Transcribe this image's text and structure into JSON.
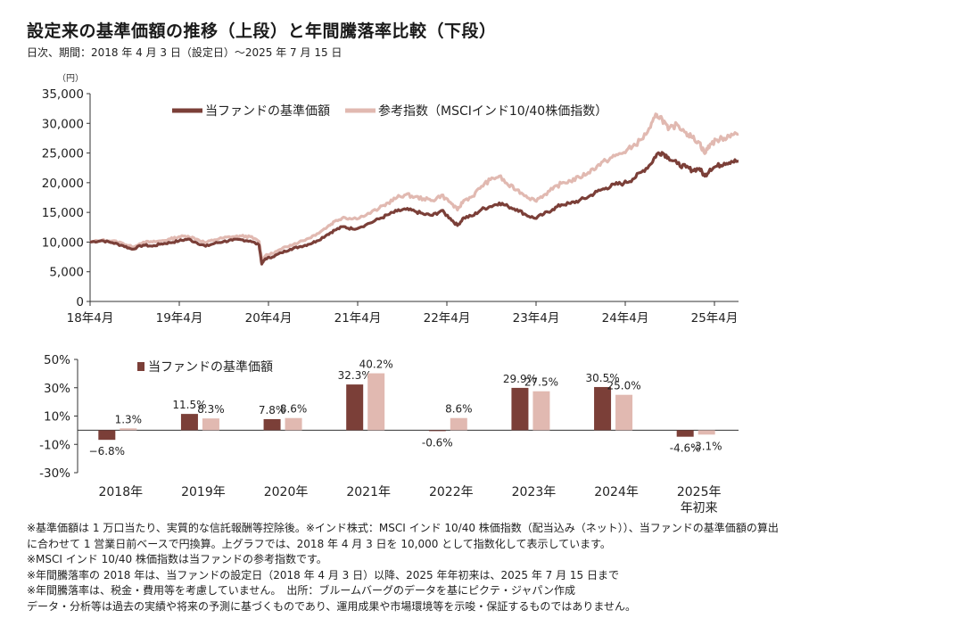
{
  "title": "設定来の基準価額の推移（上段）と年間騰落率比較（下段）",
  "subtitle": "日次、期間：2018 年 4 月 3 日（設定日）～2025 年 7 月 15 日",
  "colors": {
    "fund": "#7b3f38",
    "index": "#e1b9b1",
    "axis": "#333333"
  },
  "chart_data": [
    {
      "type": "line",
      "unit_label": "（円）",
      "ylim": [
        0,
        35000
      ],
      "y_ticks": [
        "35,000",
        "30,000",
        "25,000",
        "20,000",
        "15,000",
        "10,000",
        "5,000",
        "0"
      ],
      "x_ticks": [
        "18年4月",
        "19年4月",
        "20年4月",
        "21年4月",
        "22年4月",
        "23年4月",
        "24年4月",
        "25年4月"
      ],
      "xlim": [
        2018.25,
        2025.54
      ],
      "legend_position": "top",
      "series": [
        {
          "name": "当ファンドの基準価額",
          "points": [
            [
              2018.25,
              10000
            ],
            [
              2018.38,
              10250
            ],
            [
              2018.5,
              9900
            ],
            [
              2018.62,
              9400
            ],
            [
              2018.72,
              8800
            ],
            [
              2018.85,
              9500
            ],
            [
              2018.95,
              9300
            ],
            [
              2019.05,
              9700
            ],
            [
              2019.15,
              9900
            ],
            [
              2019.25,
              10200
            ],
            [
              2019.35,
              10500
            ],
            [
              2019.45,
              9900
            ],
            [
              2019.55,
              9300
            ],
            [
              2019.65,
              9800
            ],
            [
              2019.75,
              10100
            ],
            [
              2019.85,
              10300
            ],
            [
              2019.95,
              10400
            ],
            [
              2020.05,
              10200
            ],
            [
              2020.15,
              9500
            ],
            [
              2020.18,
              6300
            ],
            [
              2020.22,
              7200
            ],
            [
              2020.3,
              7500
            ],
            [
              2020.4,
              8200
            ],
            [
              2020.5,
              8800
            ],
            [
              2020.6,
              9200
            ],
            [
              2020.7,
              9600
            ],
            [
              2020.8,
              10200
            ],
            [
              2020.92,
              11300
            ],
            [
              2021.0,
              12000
            ],
            [
              2021.1,
              12600
            ],
            [
              2021.2,
              12200
            ],
            [
              2021.35,
              12900
            ],
            [
              2021.5,
              13900
            ],
            [
              2021.6,
              14600
            ],
            [
              2021.7,
              15200
            ],
            [
              2021.8,
              15500
            ],
            [
              2021.9,
              15200
            ],
            [
              2022.0,
              14700
            ],
            [
              2022.1,
              14500
            ],
            [
              2022.2,
              15300
            ],
            [
              2022.3,
              14000
            ],
            [
              2022.38,
              12800
            ],
            [
              2022.45,
              14100
            ],
            [
              2022.55,
              14400
            ],
            [
              2022.65,
              15500
            ],
            [
              2022.75,
              16000
            ],
            [
              2022.85,
              16600
            ],
            [
              2022.95,
              16000
            ],
            [
              2023.05,
              15500
            ],
            [
              2023.15,
              14600
            ],
            [
              2023.25,
              14000
            ],
            [
              2023.35,
              14700
            ],
            [
              2023.45,
              15500
            ],
            [
              2023.55,
              16300
            ],
            [
              2023.65,
              16500
            ],
            [
              2023.75,
              17000
            ],
            [
              2023.85,
              17600
            ],
            [
              2023.95,
              18500
            ],
            [
              2024.05,
              19100
            ],
            [
              2024.15,
              19700
            ],
            [
              2024.25,
              19900
            ],
            [
              2024.35,
              20600
            ],
            [
              2024.45,
              21800
            ],
            [
              2024.55,
              23100
            ],
            [
              2024.62,
              24800
            ],
            [
              2024.68,
              25100
            ],
            [
              2024.75,
              24300
            ],
            [
              2024.85,
              23200
            ],
            [
              2024.95,
              22600
            ],
            [
              2025.02,
              22100
            ],
            [
              2025.1,
              22400
            ],
            [
              2025.16,
              21100
            ],
            [
              2025.22,
              22300
            ],
            [
              2025.3,
              22800
            ],
            [
              2025.38,
              23300
            ],
            [
              2025.46,
              23600
            ],
            [
              2025.54,
              23600
            ]
          ]
        },
        {
          "name": "参考指数（MSCIインド10/40株価指数）",
          "points": [
            [
              2018.25,
              10000
            ],
            [
              2018.38,
              10300
            ],
            [
              2018.5,
              10200
            ],
            [
              2018.62,
              9800
            ],
            [
              2018.72,
              9200
            ],
            [
              2018.85,
              10000
            ],
            [
              2018.95,
              10000
            ],
            [
              2019.05,
              10200
            ],
            [
              2019.15,
              10500
            ],
            [
              2019.25,
              10900
            ],
            [
              2019.35,
              11000
            ],
            [
              2019.45,
              10500
            ],
            [
              2019.55,
              9900
            ],
            [
              2019.65,
              10400
            ],
            [
              2019.75,
              10700
            ],
            [
              2019.85,
              10900
            ],
            [
              2019.95,
              11000
            ],
            [
              2020.05,
              10900
            ],
            [
              2020.15,
              10100
            ],
            [
              2020.18,
              7000
            ],
            [
              2020.22,
              7700
            ],
            [
              2020.3,
              8100
            ],
            [
              2020.4,
              8800
            ],
            [
              2020.5,
              9500
            ],
            [
              2020.6,
              10000
            ],
            [
              2020.7,
              10600
            ],
            [
              2020.8,
              11400
            ],
            [
              2020.92,
              12600
            ],
            [
              2021.0,
              13500
            ],
            [
              2021.1,
              14200
            ],
            [
              2021.2,
              13900
            ],
            [
              2021.35,
              14500
            ],
            [
              2021.5,
              15700
            ],
            [
              2021.6,
              16600
            ],
            [
              2021.7,
              17500
            ],
            [
              2021.8,
              18000
            ],
            [
              2021.9,
              17600
            ],
            [
              2022.0,
              17300
            ],
            [
              2022.1,
              17000
            ],
            [
              2022.2,
              17900
            ],
            [
              2022.3,
              16700
            ],
            [
              2022.38,
              15400
            ],
            [
              2022.45,
              17000
            ],
            [
              2022.55,
              17700
            ],
            [
              2022.65,
              19400
            ],
            [
              2022.75,
              20500
            ],
            [
              2022.85,
              21100
            ],
            [
              2022.95,
              19600
            ],
            [
              2023.05,
              18800
            ],
            [
              2023.15,
              17800
            ],
            [
              2023.25,
              17000
            ],
            [
              2023.35,
              17900
            ],
            [
              2023.45,
              18900
            ],
            [
              2023.55,
              19900
            ],
            [
              2023.65,
              20300
            ],
            [
              2023.75,
              20900
            ],
            [
              2023.85,
              21700
            ],
            [
              2023.95,
              22800
            ],
            [
              2024.05,
              23700
            ],
            [
              2024.15,
              24500
            ],
            [
              2024.25,
              25100
            ],
            [
              2024.35,
              26100
            ],
            [
              2024.45,
              27300
            ],
            [
              2024.55,
              29300
            ],
            [
              2024.62,
              31500
            ],
            [
              2024.68,
              30800
            ],
            [
              2024.75,
              28900
            ],
            [
              2024.85,
              29800
            ],
            [
              2024.95,
              28500
            ],
            [
              2025.02,
              27600
            ],
            [
              2025.1,
              26800
            ],
            [
              2025.16,
              24900
            ],
            [
              2025.22,
              26500
            ],
            [
              2025.3,
              27200
            ],
            [
              2025.38,
              27500
            ],
            [
              2025.46,
              28200
            ],
            [
              2025.54,
              28200
            ]
          ]
        }
      ]
    },
    {
      "type": "bar",
      "ylim": [
        -30,
        50
      ],
      "y_ticks": [
        "50%",
        "30%",
        "10%",
        "-10%",
        "-30%"
      ],
      "categories": [
        "2018年",
        "2019年",
        "2020年",
        "2021年",
        "2022年",
        "2023年",
        "2024年",
        "2025年\n年初来"
      ],
      "legend_position": "top-left",
      "series": [
        {
          "name": "当ファンドの基準価額",
          "values": [
            -6.8,
            11.5,
            7.8,
            32.3,
            -0.6,
            29.9,
            30.5,
            -4.6
          ],
          "labels": [
            "−6.8%",
            "11.5%",
            "7.8%",
            "32.3%",
            "-0.6%",
            "29.9%",
            "30.5%",
            "-4.6%"
          ]
        },
        {
          "values": [
            1.3,
            8.3,
            8.6,
            40.2,
            8.6,
            27.5,
            25.0,
            -3.1
          ],
          "labels": [
            "1.3%",
            "8.3%",
            "8.6%",
            "40.2%",
            "8.6%",
            "27.5%",
            "25.0%",
            "-3.1%"
          ]
        }
      ]
    }
  ],
  "notes": [
    "※基準価額は 1 万口当たり、実質的な信託報酬等控除後。※インド株式：MSCI インド 10/40 株価指数（配当込み（ネット））、当ファンドの基準価額の算出",
    "に合わせて 1 営業日前ベースで円換算。上グラフでは、2018 年 4 月 3 日を 10,000 として指数化して表示しています。",
    "※MSCI インド 10/40 株価指数は当ファンドの参考指数です。",
    "※年間騰落率の 2018 年は、当ファンドの設定日（2018 年 4 月 3 日）以降、2025 年年初来は、2025 年 7 月 15 日まで",
    "※年間騰落率は、税金・費用等を考慮していません。　出所：ブルームバーグのデータを基にピクテ・ジャパン作成",
    "データ・分析等は過去の実績や将来の予測に基づくものであり、運用成果や市場環境等を示唆・保証するものではありません。"
  ]
}
